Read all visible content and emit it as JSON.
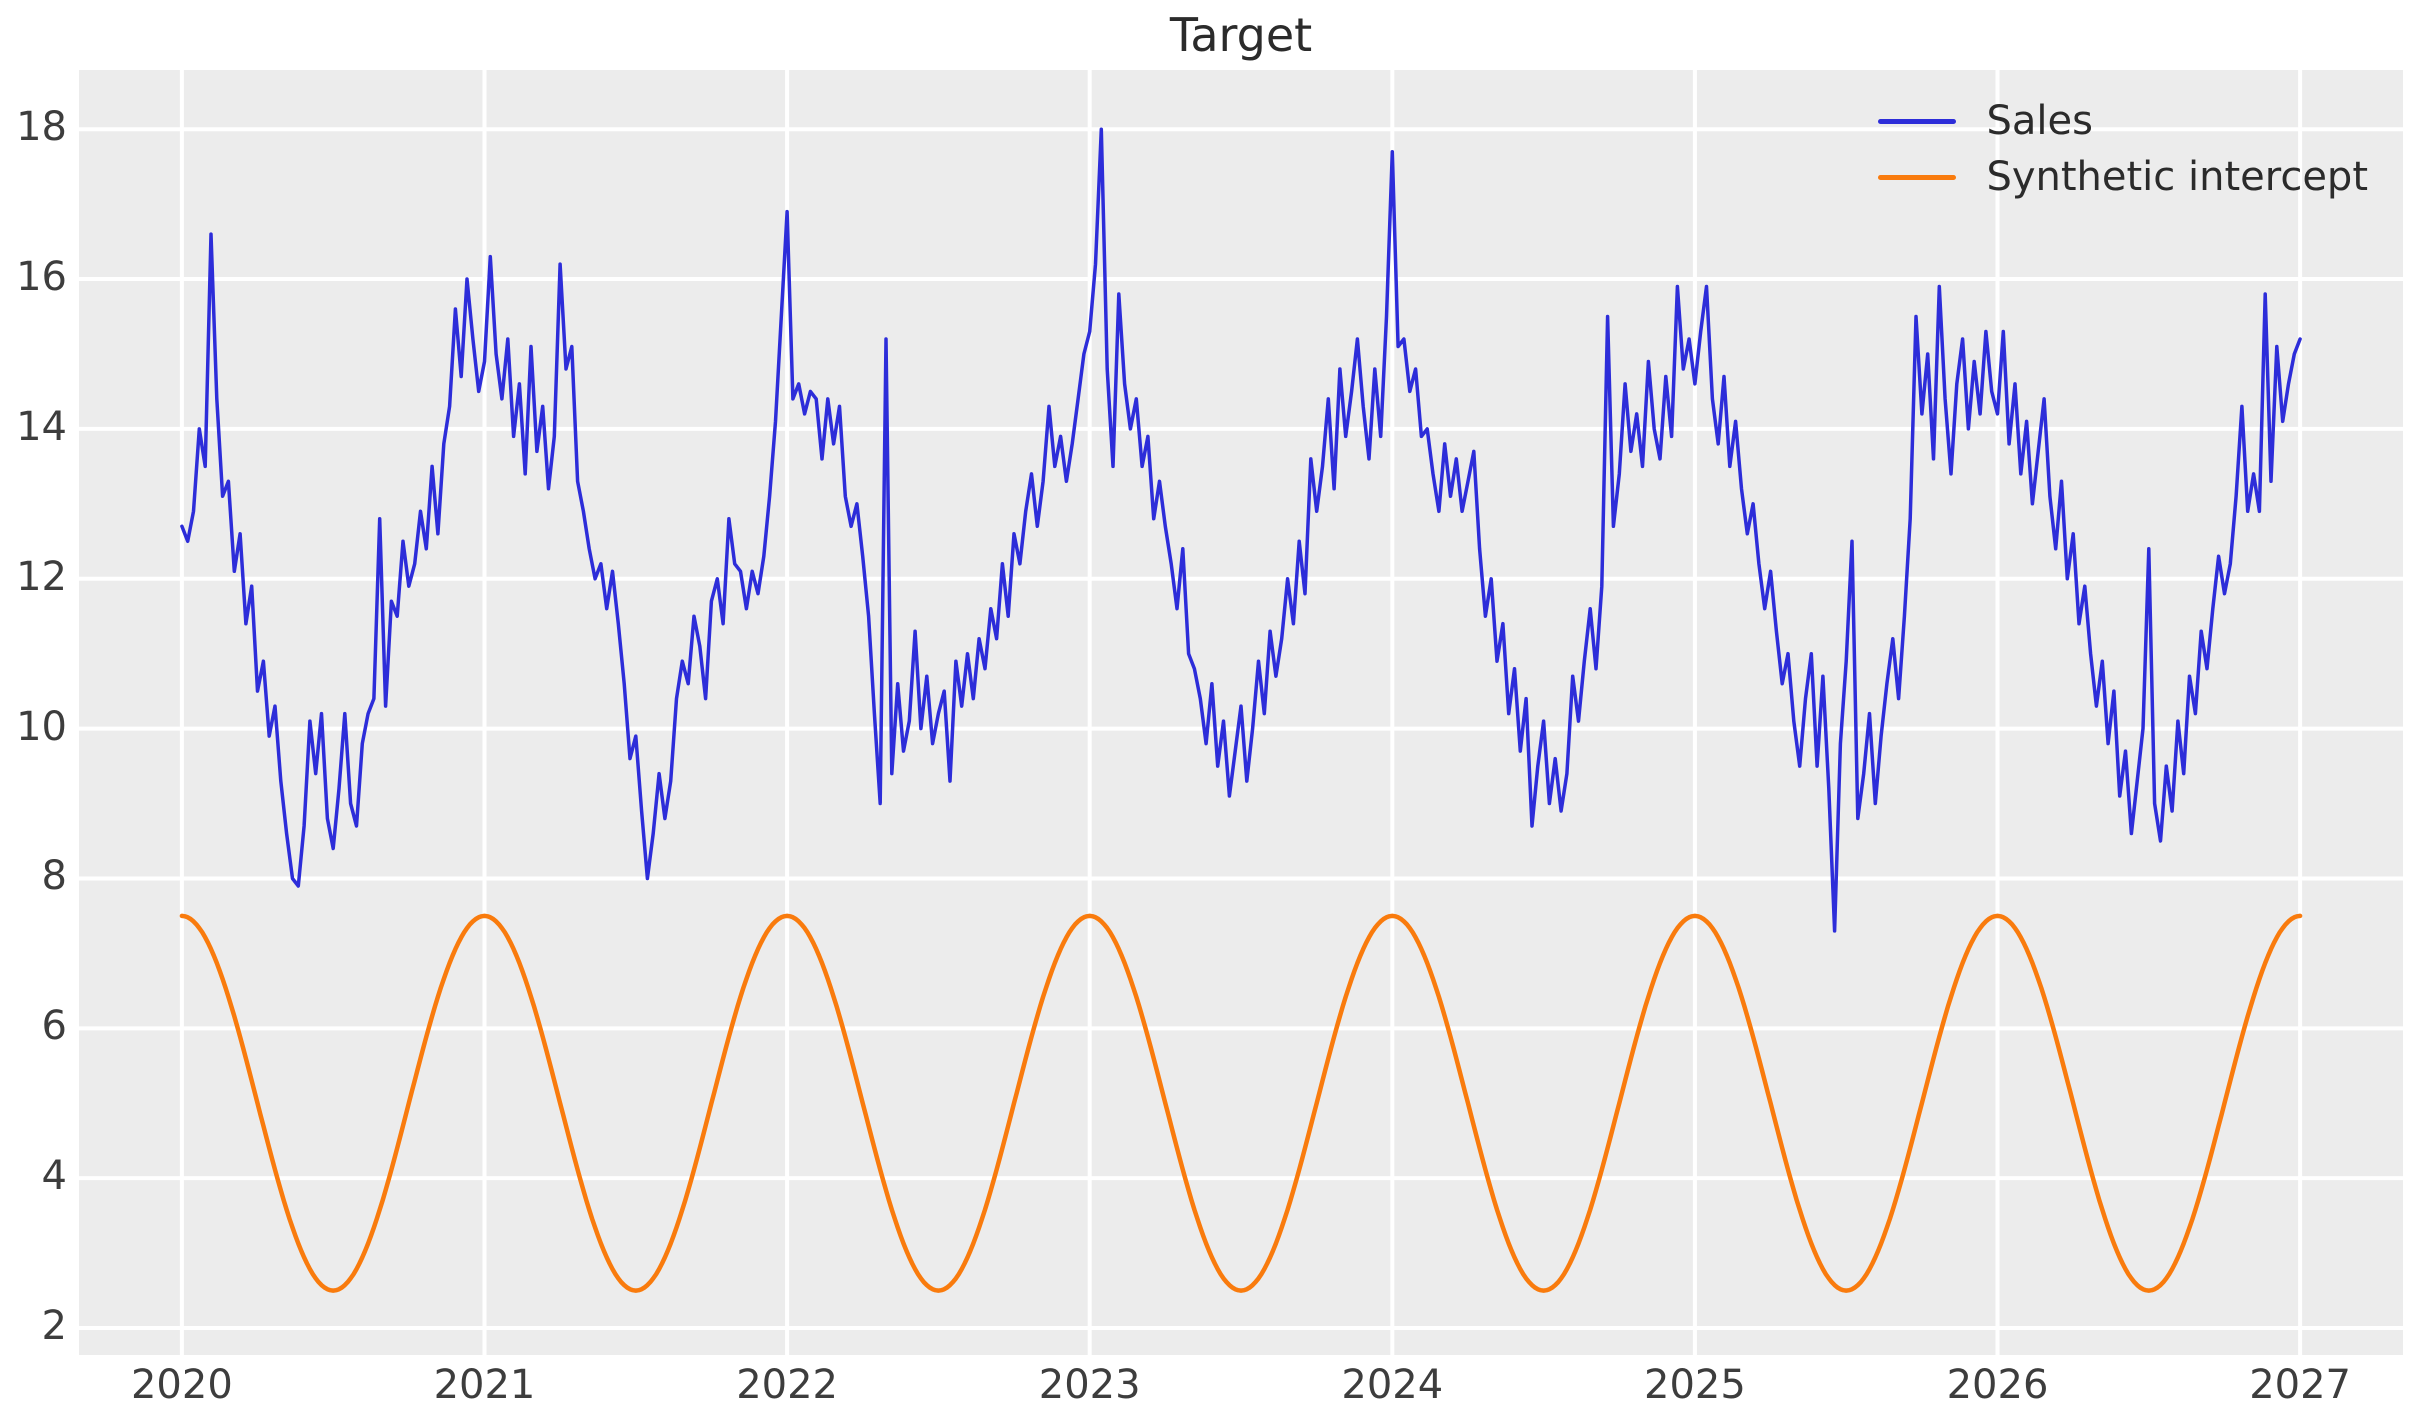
{
  "title": "Target",
  "legend": {
    "position": "upper right",
    "items": [
      {
        "label": "Sales",
        "color": "#2d2dd9"
      },
      {
        "label": "Synthetic intercept",
        "color": "#f97b0d"
      }
    ]
  },
  "axes": {
    "x_tick_labels": [
      "2020",
      "2021",
      "2022",
      "2023",
      "2024",
      "2025",
      "2026",
      "2027"
    ],
    "y_tick_labels": [
      "2",
      "4",
      "6",
      "8",
      "10",
      "12",
      "14",
      "16",
      "18"
    ]
  },
  "colors": {
    "figure_background": "#ffffff",
    "plot_background": "#ececec",
    "gridline": "#ffffff",
    "sales_line": "#2d2dd9",
    "synthetic_intercept_line": "#f97b0d",
    "title_text": "#2b2b2b",
    "tick_text": "#3d3d3d"
  },
  "chart_data": {
    "type": "line",
    "title": "Target",
    "xlabel": "",
    "ylabel": "",
    "grid": true,
    "legend_position": "upper right",
    "xlim": [
      2019.66,
      2027.34
    ],
    "ylim": [
      1.64,
      18.79
    ],
    "x_ticks": [
      2020,
      2021,
      2022,
      2023,
      2024,
      2025,
      2026,
      2027
    ],
    "y_ticks": [
      2,
      4,
      6,
      8,
      10,
      12,
      14,
      16,
      18
    ],
    "x_start": 2020,
    "x_end": 2027,
    "sampling": "weekly",
    "series": [
      {
        "name": "Sales",
        "color": "#2d2dd9",
        "line_width": 3.5,
        "values": [
          12.7,
          12.5,
          12.9,
          14.0,
          13.5,
          16.6,
          14.4,
          13.1,
          13.3,
          12.1,
          12.6,
          11.4,
          11.9,
          10.5,
          10.9,
          9.9,
          10.3,
          9.3,
          8.6,
          8.0,
          7.9,
          8.7,
          10.1,
          9.4,
          10.2,
          8.8,
          8.4,
          9.2,
          10.2,
          9.0,
          8.7,
          9.8,
          10.2,
          10.4,
          12.8,
          10.3,
          11.7,
          11.5,
          12.5,
          11.9,
          12.2,
          12.9,
          12.4,
          13.5,
          12.6,
          13.8,
          14.3,
          15.6,
          14.7,
          16.0,
          15.2,
          14.5,
          14.9,
          16.3,
          15.0,
          14.4,
          15.2,
          13.9,
          14.6,
          13.4,
          15.1,
          13.7,
          14.3,
          13.2,
          13.9,
          16.2,
          14.8,
          15.1,
          13.3,
          12.9,
          12.4,
          12.0,
          12.2,
          11.6,
          12.1,
          11.4,
          10.6,
          9.6,
          9.9,
          8.9,
          8.0,
          8.6,
          9.4,
          8.8,
          9.3,
          10.4,
          10.9,
          10.6,
          11.5,
          11.1,
          10.4,
          11.7,
          12.0,
          11.4,
          12.8,
          12.2,
          12.1,
          11.6,
          12.1,
          11.8,
          12.3,
          13.1,
          14.1,
          15.5,
          16.9,
          14.4,
          14.6,
          14.2,
          14.5,
          14.4,
          13.6,
          14.4,
          13.8,
          14.3,
          13.1,
          12.7,
          13.0,
          12.3,
          11.5,
          10.2,
          9.0,
          15.2,
          9.4,
          10.6,
          9.7,
          10.1,
          11.3,
          10.0,
          10.7,
          9.8,
          10.2,
          10.5,
          9.3,
          10.9,
          10.3,
          11.0,
          10.4,
          11.2,
          10.8,
          11.6,
          11.2,
          12.2,
          11.5,
          12.6,
          12.2,
          12.9,
          13.4,
          12.7,
          13.3,
          14.3,
          13.5,
          13.9,
          13.3,
          13.8,
          14.4,
          15.0,
          15.3,
          16.2,
          18.0,
          14.8,
          13.5,
          15.8,
          14.6,
          14.0,
          14.4,
          13.5,
          13.9,
          12.8,
          13.3,
          12.7,
          12.2,
          11.6,
          12.4,
          11.0,
          10.8,
          10.4,
          9.8,
          10.6,
          9.5,
          10.1,
          9.1,
          9.7,
          10.3,
          9.3,
          10.0,
          10.9,
          10.2,
          11.3,
          10.7,
          11.2,
          12.0,
          11.4,
          12.5,
          11.8,
          13.6,
          12.9,
          13.5,
          14.4,
          13.2,
          14.8,
          13.9,
          14.5,
          15.2,
          14.3,
          13.6,
          14.8,
          13.9,
          15.5,
          17.7,
          15.1,
          15.2,
          14.5,
          14.8,
          13.9,
          14.0,
          13.4,
          12.9,
          13.8,
          13.1,
          13.6,
          12.9,
          13.3,
          13.7,
          12.4,
          11.5,
          12.0,
          10.9,
          11.4,
          10.2,
          10.8,
          9.7,
          10.4,
          8.7,
          9.5,
          10.1,
          9.0,
          9.6,
          8.9,
          9.4,
          10.7,
          10.1,
          10.9,
          11.6,
          10.8,
          11.9,
          15.5,
          12.7,
          13.4,
          14.6,
          13.7,
          14.2,
          13.5,
          14.9,
          14.0,
          13.6,
          14.7,
          13.9,
          15.9,
          14.8,
          15.2,
          14.6,
          15.3,
          15.9,
          14.4,
          13.8,
          14.7,
          13.5,
          14.1,
          13.2,
          12.6,
          13.0,
          12.2,
          11.6,
          12.1,
          11.3,
          10.6,
          11.0,
          10.1,
          9.5,
          10.4,
          11.0,
          9.5,
          10.7,
          9.2,
          7.3,
          9.8,
          10.9,
          12.5,
          8.8,
          9.4,
          10.2,
          9.0,
          9.9,
          10.6,
          11.2,
          10.4,
          11.5,
          12.8,
          15.5,
          14.2,
          15.0,
          13.6,
          15.9,
          14.4,
          13.4,
          14.6,
          15.2,
          14.0,
          14.9,
          14.2,
          15.3,
          14.5,
          14.2,
          15.3,
          13.8,
          14.6,
          13.4,
          14.1,
          13.0,
          13.7,
          14.4,
          13.1,
          12.4,
          13.3,
          12.0,
          12.6,
          11.4,
          11.9,
          11.0,
          10.3,
          10.9,
          9.8,
          10.5,
          9.1,
          9.7,
          8.6,
          9.3,
          10.0,
          12.4,
          9.0,
          8.5,
          9.5,
          8.9,
          10.1,
          9.4,
          10.7,
          10.2,
          11.3,
          10.8,
          11.6,
          12.3,
          11.8,
          12.2,
          13.1,
          14.3,
          12.9,
          13.4,
          12.9,
          15.8,
          13.3,
          15.1,
          14.1,
          14.6,
          15.0,
          15.2
        ]
      },
      {
        "name": "Synthetic intercept",
        "color": "#f97b0d",
        "line_width": 4.5,
        "generator": {
          "kind": "cosine",
          "mean": 5.0,
          "amplitude": 2.5,
          "period_years": 1,
          "peak_at": 2020.0,
          "min_value": 2.5,
          "max_value": 7.5,
          "points": 729
        }
      }
    ]
  },
  "layout_note": ""
}
